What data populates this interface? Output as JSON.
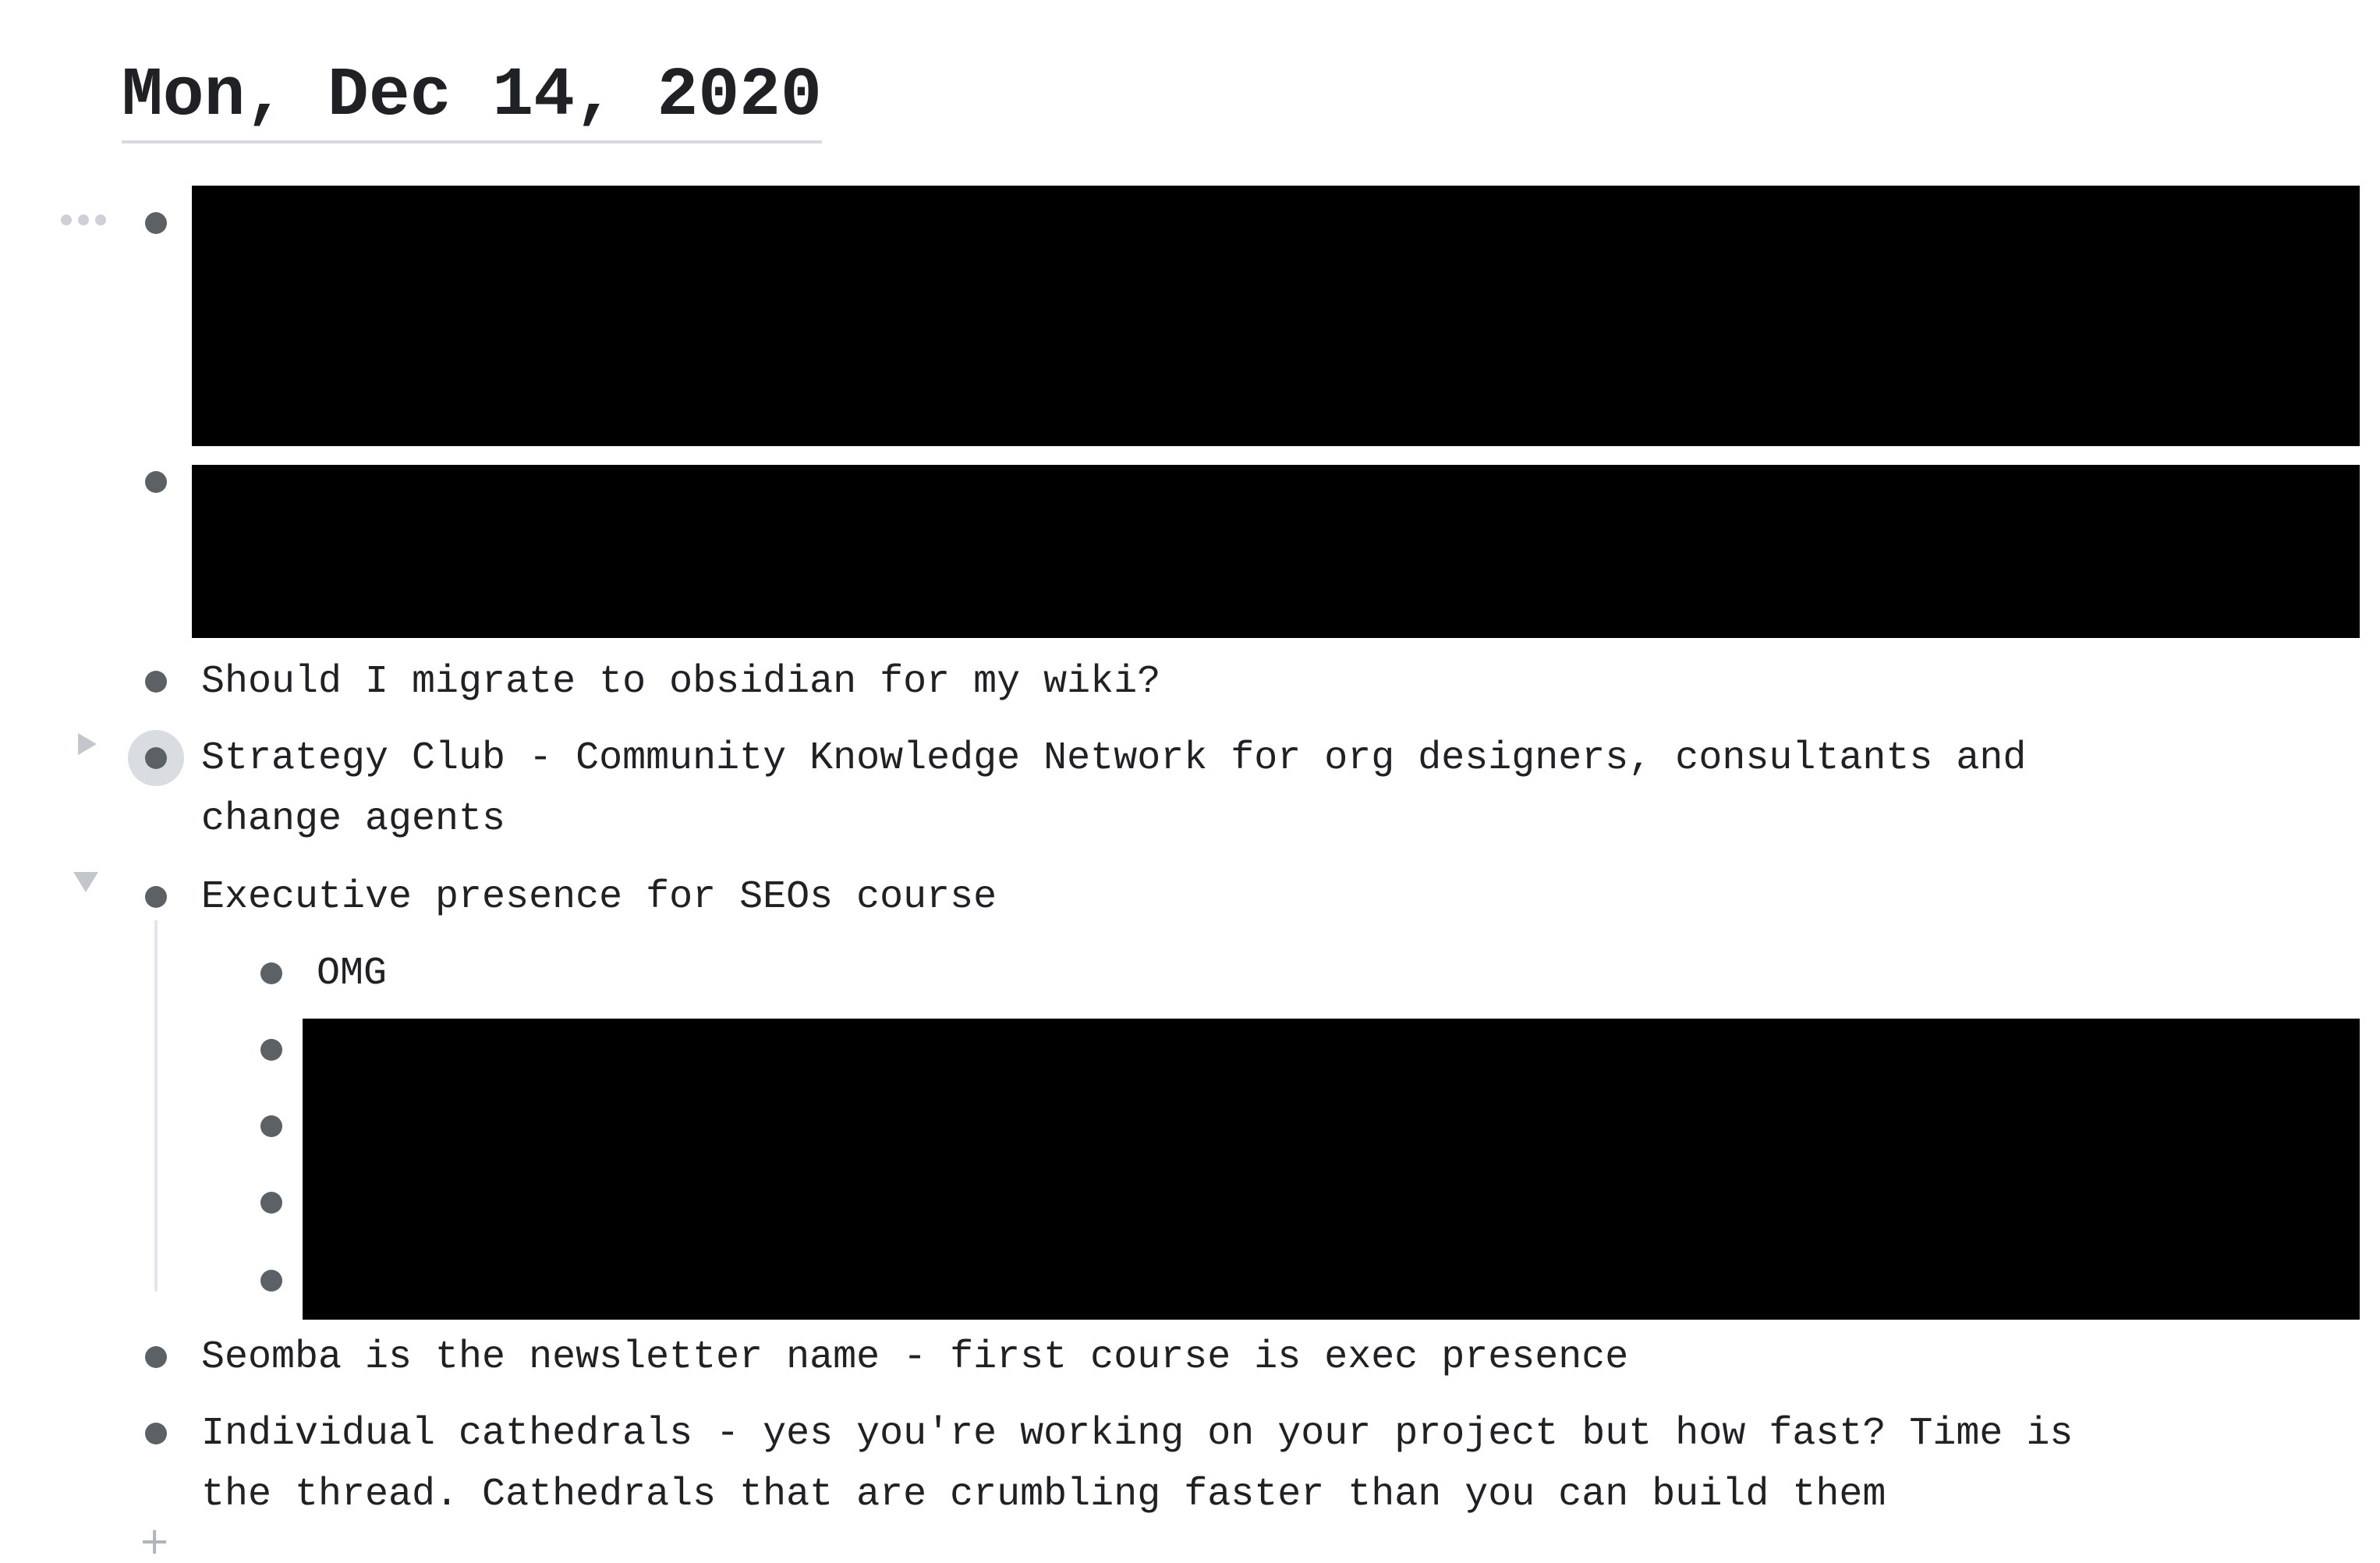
{
  "page": {
    "title": "Mon, Dec 14, 2020"
  },
  "blocks": [
    {
      "text": "Should I migrate to obsidian for my wiki?"
    },
    {
      "text": "Strategy Club - Community Knowledge Network for org designers, consultants and\nchange agents"
    },
    {
      "text": "Executive presence for SEOs course"
    },
    {
      "text": "OMG"
    },
    {
      "text": "Seomba is the newsletter name - first course is exec presence"
    },
    {
      "text": "Individual cathedrals - yes you're working on your project but how fast? Time is\nthe thread. Cathedrals that are crumbling faster than you can build them"
    }
  ],
  "controls": {
    "add_symbol": "+"
  },
  "colors": {
    "bullet": "#5c6166",
    "redaction": "#000000",
    "title_underline": "#d7dbe0"
  },
  "icons": [
    "more-options-icon",
    "collapsed-caret-icon",
    "expanded-caret-icon",
    "add-block-icon"
  ]
}
